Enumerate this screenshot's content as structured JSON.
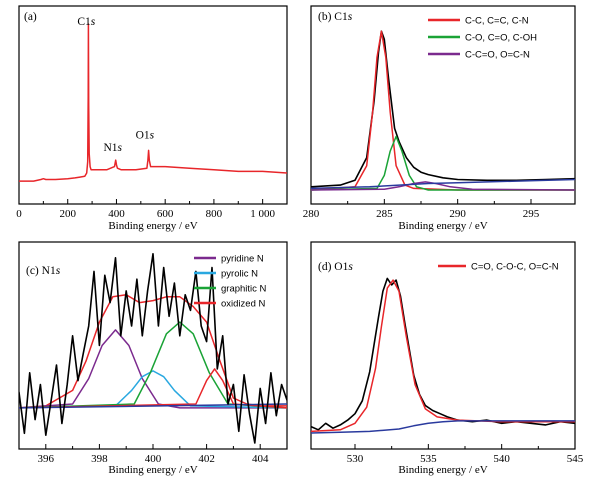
{
  "chart_data": [
    {
      "type": "line",
      "panel": "(a)",
      "xlabel": "Binding energy / eV",
      "xlim": [
        0,
        1100
      ],
      "ylim": [
        0,
        1
      ],
      "xticks": [
        0,
        200,
        400,
        600,
        800,
        1000
      ],
      "xticklabels": [
        "0",
        "200",
        "400",
        "600",
        "800",
        "1 000"
      ],
      "annotations": [
        {
          "text": "C1s",
          "x": 284.8,
          "y": 0.97
        },
        {
          "text": "N1s",
          "x": 400,
          "y": 0.19
        },
        {
          "text": "O1s",
          "x": 532,
          "y": 0.27
        }
      ],
      "series": [
        {
          "color": "#e8262a",
          "x": [
            0,
            60,
            90,
            100,
            110,
            150,
            200,
            230,
            250,
            270,
            278,
            282,
            284,
            284.8,
            286,
            288,
            292,
            296,
            300,
            320,
            360,
            392,
            397,
            400,
            404,
            420,
            480,
            525,
            529,
            532,
            535,
            540,
            600,
            700,
            800,
            900,
            1000,
            1100
          ],
          "y": [
            0.03,
            0.03,
            0.04,
            0.045,
            0.04,
            0.04,
            0.045,
            0.05,
            0.055,
            0.06,
            0.08,
            0.15,
            0.55,
            1.0,
            0.5,
            0.2,
            0.12,
            0.1,
            0.1,
            0.1,
            0.1,
            0.12,
            0.16,
            0.13,
            0.11,
            0.1,
            0.1,
            0.11,
            0.16,
            0.22,
            0.16,
            0.12,
            0.12,
            0.11,
            0.1,
            0.09,
            0.09,
            0.08
          ]
        }
      ]
    },
    {
      "type": "line",
      "panel": "(b)",
      "xlabel": "Binding energy / eV",
      "xlim": [
        280,
        298
      ],
      "ylim": [
        0,
        1
      ],
      "xticks": [
        280,
        285,
        290,
        295
      ],
      "xticklabels": [
        "280",
        "285",
        "290",
        "295"
      ],
      "legend": [
        {
          "label": "C-C, C=C, C-N",
          "color": "#e8262a"
        },
        {
          "label": "C-O, C=O, C-OH",
          "color": "#1aa336"
        },
        {
          "label": "C-C=O, O=C-N",
          "color": "#7b2a8e"
        }
      ],
      "series": [
        {
          "name": "envelope",
          "color": "#000000",
          "x": [
            280,
            282,
            283,
            283.8,
            284.3,
            284.6,
            284.8,
            285.0,
            285.3,
            285.7,
            286.0,
            286.5,
            287,
            287.5,
            288,
            289,
            290,
            292,
            294,
            296,
            298
          ],
          "y": [
            0.02,
            0.03,
            0.06,
            0.2,
            0.55,
            0.85,
            0.98,
            0.93,
            0.68,
            0.38,
            0.3,
            0.2,
            0.14,
            0.11,
            0.095,
            0.075,
            0.065,
            0.06,
            0.06,
            0.065,
            0.07
          ]
        },
        {
          "name": "C-C, C=C, C-N",
          "color": "#e8262a",
          "x": [
            280,
            283,
            283.8,
            284.2,
            284.5,
            284.8,
            285.1,
            285.4,
            285.8,
            286.4,
            287,
            290,
            298
          ],
          "y": [
            0.0,
            0.02,
            0.15,
            0.48,
            0.82,
            0.98,
            0.82,
            0.48,
            0.15,
            0.03,
            0.01,
            0.0,
            0.0
          ]
        },
        {
          "name": "C-O, C=O, C-OH",
          "color": "#1aa336",
          "x": [
            280,
            284.5,
            285.0,
            285.4,
            285.8,
            286.2,
            286.7,
            287.2,
            288,
            298
          ],
          "y": [
            0.0,
            0.01,
            0.09,
            0.24,
            0.33,
            0.24,
            0.09,
            0.02,
            0.0,
            0.0
          ]
        },
        {
          "name": "C-C=O, O=C-N",
          "color": "#7b2a8e",
          "x": [
            280,
            285,
            286,
            287,
            287.8,
            288.5,
            289.5,
            291,
            298
          ],
          "y": [
            0.0,
            0.005,
            0.02,
            0.04,
            0.05,
            0.04,
            0.02,
            0.005,
            0.0
          ]
        },
        {
          "name": "baseline",
          "color": "#2a3a9e",
          "x": [
            280,
            284,
            286,
            288,
            290,
            294,
            298
          ],
          "y": [
            0.01,
            0.02,
            0.03,
            0.04,
            0.045,
            0.055,
            0.065
          ]
        }
      ]
    },
    {
      "type": "line",
      "panel": "(c)",
      "xlabel": "Binding energy / eV",
      "xlim": [
        395,
        405
      ],
      "ylim": [
        0,
        1
      ],
      "xticks": [
        396,
        398,
        400,
        402,
        404
      ],
      "xticklabels": [
        "396",
        "398",
        "400",
        "402",
        "404"
      ],
      "legend": [
        {
          "label": "pyridine N",
          "color": "#7b2a8e"
        },
        {
          "label": "pyrolic N",
          "color": "#29a8e0"
        },
        {
          "label": "graphitic N",
          "color": "#1aa336"
        },
        {
          "label": "oxidized N",
          "color": "#e8262a"
        }
      ],
      "series": [
        {
          "name": "envelope",
          "color": "#e8262a",
          "x": [
            395,
            396,
            397,
            397.5,
            398,
            398.5,
            399,
            399.5,
            400,
            400.5,
            401,
            401.5,
            402,
            402.5,
            403,
            403.5,
            404,
            405
          ],
          "y": [
            0.18,
            0.19,
            0.27,
            0.42,
            0.62,
            0.75,
            0.76,
            0.72,
            0.73,
            0.75,
            0.75,
            0.7,
            0.62,
            0.42,
            0.23,
            0.2,
            0.19,
            0.19
          ]
        },
        {
          "name": "pyridine N",
          "color": "#7b2a8e",
          "x": [
            395,
            397,
            397.6,
            398.1,
            398.6,
            399.1,
            399.6,
            400.2,
            401,
            405
          ],
          "y": [
            0.18,
            0.2,
            0.33,
            0.5,
            0.58,
            0.5,
            0.33,
            0.2,
            0.18,
            0.18
          ]
        },
        {
          "name": "pyrolic N",
          "color": "#29a8e0",
          "x": [
            395,
            398.6,
            399.2,
            399.6,
            400.0,
            400.4,
            400.8,
            401.4,
            405
          ],
          "y": [
            0.18,
            0.19,
            0.27,
            0.34,
            0.37,
            0.34,
            0.27,
            0.19,
            0.18
          ]
        },
        {
          "name": "graphitic N",
          "color": "#1aa336",
          "x": [
            395,
            399.3,
            399.9,
            400.5,
            401.0,
            401.5,
            402.1,
            402.8,
            405
          ],
          "y": [
            0.18,
            0.2,
            0.36,
            0.56,
            0.62,
            0.56,
            0.36,
            0.2,
            0.18
          ]
        },
        {
          "name": "oxidized N",
          "color": "#e8262a",
          "x": [
            395,
            401.6,
            402.0,
            402.3,
            402.6,
            403.0,
            405
          ],
          "y": [
            0.18,
            0.2,
            0.32,
            0.38,
            0.32,
            0.2,
            0.18
          ]
        },
        {
          "name": "baseline",
          "color": "#2a3a9e",
          "x": [
            395,
            405
          ],
          "y": [
            0.18,
            0.2
          ]
        },
        {
          "name": "raw",
          "color": "#000000",
          "x": [
            395,
            395.2,
            395.4,
            395.6,
            395.8,
            396,
            396.2,
            396.4,
            396.6,
            396.8,
            397,
            397.2,
            397.4,
            397.6,
            397.8,
            398,
            398.2,
            398.4,
            398.6,
            398.8,
            399,
            399.2,
            399.4,
            399.6,
            399.8,
            400,
            400.2,
            400.4,
            400.6,
            400.8,
            401,
            401.2,
            401.4,
            401.6,
            401.8,
            402,
            402.2,
            402.4,
            402.6,
            402.8,
            403,
            403.2,
            403.4,
            403.6,
            403.8,
            404,
            404.2,
            404.4,
            404.6,
            404.8,
            405
          ],
          "y": [
            0.26,
            0.05,
            0.36,
            0.12,
            0.3,
            0.04,
            0.22,
            0.4,
            0.1,
            0.3,
            0.55,
            0.32,
            0.46,
            0.6,
            0.88,
            0.5,
            0.86,
            0.72,
            0.95,
            0.55,
            0.78,
            0.6,
            0.84,
            0.55,
            0.78,
            0.97,
            0.6,
            0.9,
            0.65,
            0.82,
            0.55,
            0.76,
            0.68,
            0.88,
            0.6,
            0.52,
            0.9,
            0.38,
            0.55,
            0.2,
            0.3,
            0.06,
            0.35,
            0.15,
            0.0,
            0.28,
            0.1,
            0.36,
            0.14,
            0.3,
            0.22
          ]
        }
      ]
    },
    {
      "type": "line",
      "panel": "(d)",
      "xlabel": "Binding energy / eV",
      "xlim": [
        527,
        545
      ],
      "ylim": [
        0,
        1
      ],
      "xticks": [
        530,
        535,
        540,
        545
      ],
      "xticklabels": [
        "530",
        "535",
        "540",
        "545"
      ],
      "legend": [
        {
          "label": "C=O, C-O-C, O=C-N",
          "color": "#e8262a"
        }
      ],
      "series": [
        {
          "name": "raw",
          "color": "#000000",
          "x": [
            527,
            527.5,
            528,
            528.5,
            529,
            529.5,
            530,
            530.5,
            531,
            531.3,
            531.6,
            531.9,
            532.2,
            532.5,
            532.8,
            533.1,
            533.4,
            533.7,
            534,
            534.4,
            534.8,
            535.3,
            535.8,
            536.3,
            537,
            538,
            539,
            540,
            541,
            542,
            543,
            544,
            545
          ],
          "y": [
            0.04,
            0.02,
            0.06,
            0.03,
            0.05,
            0.08,
            0.12,
            0.2,
            0.38,
            0.55,
            0.72,
            0.88,
            0.96,
            0.92,
            0.95,
            0.85,
            0.68,
            0.52,
            0.36,
            0.24,
            0.17,
            0.14,
            0.12,
            0.1,
            0.08,
            0.07,
            0.08,
            0.06,
            0.07,
            0.06,
            0.05,
            0.07,
            0.06
          ]
        },
        {
          "name": "C=O, C-O-C, O=C-N",
          "color": "#e8262a",
          "x": [
            527,
            529,
            530,
            530.8,
            531.4,
            531.8,
            532.2,
            532.6,
            533.0,
            533.5,
            534.1,
            534.8,
            535.6,
            537,
            540,
            545
          ],
          "y": [
            0.01,
            0.02,
            0.06,
            0.16,
            0.4,
            0.66,
            0.9,
            0.95,
            0.88,
            0.6,
            0.3,
            0.15,
            0.1,
            0.08,
            0.07,
            0.07
          ]
        },
        {
          "name": "baseline",
          "color": "#2a3a9e",
          "x": [
            527,
            529,
            531,
            533,
            534,
            535,
            536,
            537,
            539,
            541,
            545
          ],
          "y": [
            0.0,
            0.005,
            0.01,
            0.025,
            0.045,
            0.06,
            0.07,
            0.075,
            0.075,
            0.075,
            0.075
          ]
        }
      ]
    }
  ]
}
